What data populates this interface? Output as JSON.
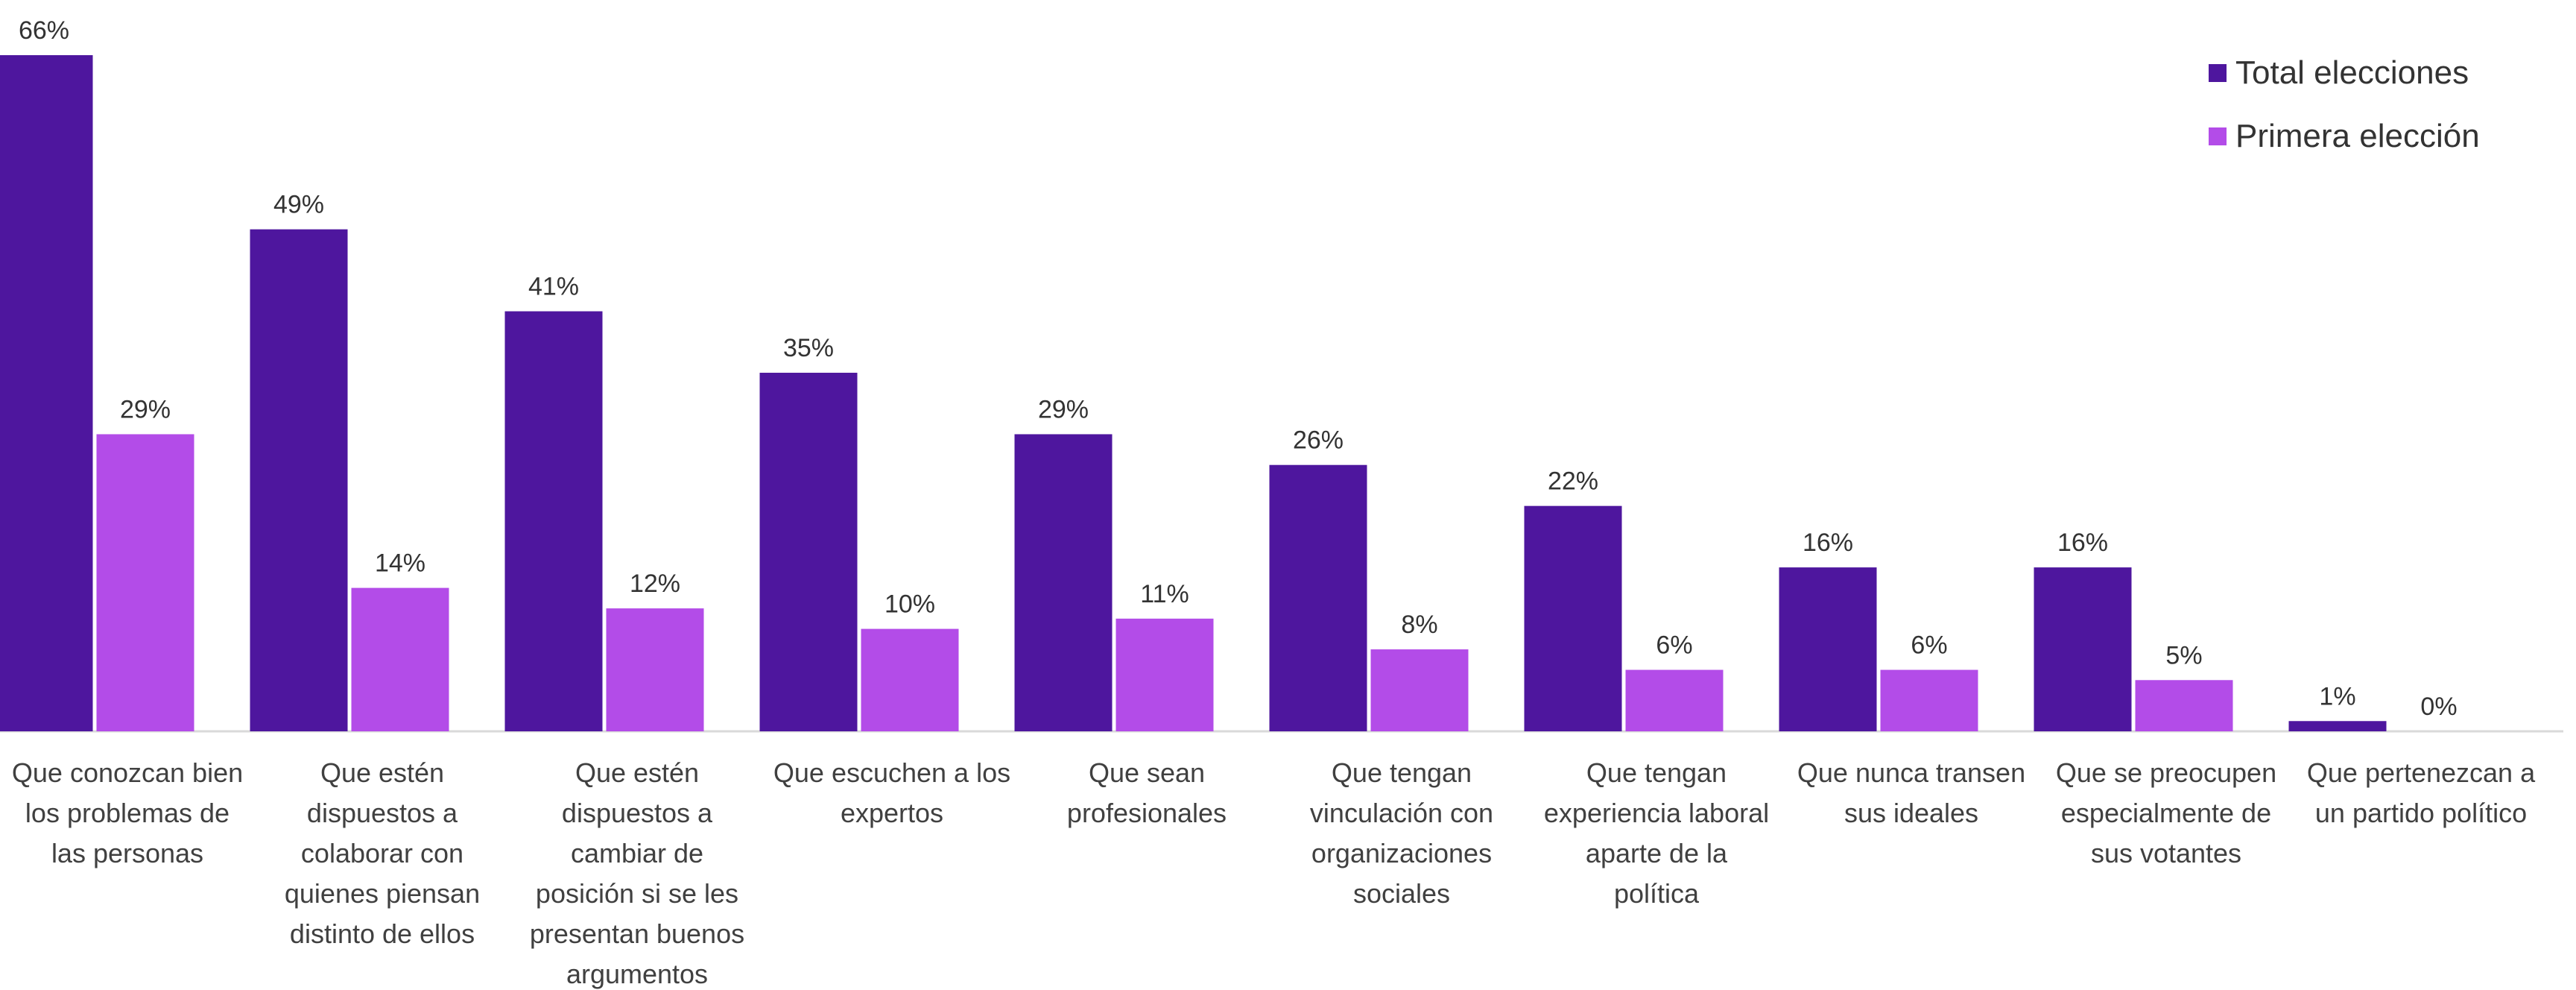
{
  "chart_data": {
    "type": "bar",
    "categories": [
      "Que conozcan bien los problemas de las personas",
      "Que estén dispuestos a colaborar con quienes piensan distinto de ellos",
      "Que estén dispuestos a cambiar de posición si se les presentan buenos argumentos",
      "Que escuchen a los expertos",
      "Que sean profesionales",
      "Que tengan vinculación con organizaciones sociales",
      "Que tengan experiencia laboral aparte de la política",
      "Que nunca transen sus ideales",
      "Que se preocupen especialmente de sus votantes",
      "Que pertenezcan a un partido político"
    ],
    "category_lines": [
      [
        "Que conozcan bien",
        "los problemas de",
        "las personas"
      ],
      [
        "Que estén",
        "dispuestos a",
        "colaborar con",
        "quienes piensan",
        "distinto de ellos"
      ],
      [
        "Que estén",
        "dispuestos a",
        "cambiar de",
        "posición si se les",
        "presentan buenos",
        "argumentos"
      ],
      [
        "Que escuchen a los",
        "expertos"
      ],
      [
        "Que sean",
        "profesionales"
      ],
      [
        "Que tengan",
        "vinculación con",
        "organizaciones",
        "sociales"
      ],
      [
        "Que tengan",
        "experiencia laboral",
        "aparte de la",
        "política"
      ],
      [
        "Que nunca transen",
        "sus ideales"
      ],
      [
        "Que se preocupen",
        "especialmente de",
        "sus votantes"
      ],
      [
        "Que pertenezcan a",
        "un partido político"
      ]
    ],
    "series": [
      {
        "name": "Total elecciones",
        "color": "#4e169e",
        "values": [
          66,
          49,
          41,
          35,
          29,
          26,
          22,
          16,
          16,
          1
        ],
        "labels": [
          "66%",
          "49%",
          "41%",
          "35%",
          "29%",
          "26%",
          "22%",
          "16%",
          "16%",
          "1%"
        ]
      },
      {
        "name": "Primera elección",
        "color": "#b34ce8",
        "values": [
          29,
          14,
          12,
          10,
          11,
          8,
          6,
          6,
          5,
          0
        ],
        "labels": [
          "29%",
          "14%",
          "12%",
          "10%",
          "11%",
          "8%",
          "6%",
          "6%",
          "5%",
          "0%"
        ]
      }
    ],
    "ylim": [
      0,
      66
    ],
    "grid": false,
    "legend_position": "top-right",
    "xlabel": "",
    "ylabel": ""
  }
}
